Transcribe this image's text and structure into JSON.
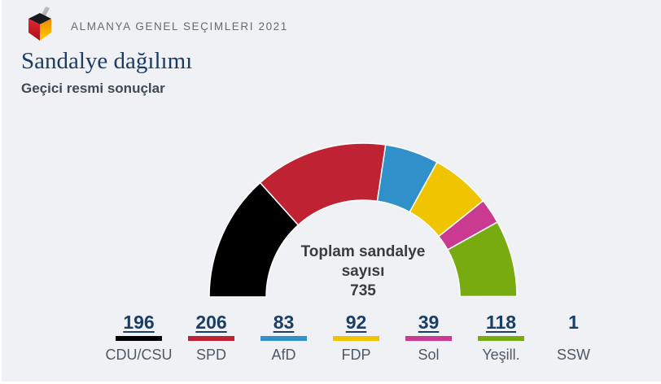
{
  "page": {
    "background": "#eff1f4"
  },
  "header": {
    "logo": "ballot-box-logo",
    "brand": "ALMANYA GENEL SEÇIMLERI 2021"
  },
  "main": {
    "title": "Sandalye dağılımı",
    "subtitle": "Geçici resmi sonuçlar"
  },
  "chart_data": {
    "type": "pie",
    "variant": "half-donut",
    "legend_position": "bottom",
    "title": "Sandalye dağılımı",
    "subtitle": "Geçici resmi sonuçlar",
    "total_seats": 735,
    "center_label": {
      "line1": "Toplam sandalye",
      "line2": "sayısı",
      "line3": "735"
    },
    "categories": [
      "CDU/CSU",
      "SPD",
      "AfD",
      "FDP",
      "Sol",
      "Yeşill.",
      "SSW"
    ],
    "values": [
      196,
      206,
      83,
      92,
      39,
      118,
      1
    ],
    "colors": [
      "#000000",
      "#bf2333",
      "#3090c9",
      "#f0c500",
      "#ca3a90",
      "#77ab10",
      ""
    ],
    "separator_color": "#ffffff",
    "number_color": "#1b3e66"
  }
}
